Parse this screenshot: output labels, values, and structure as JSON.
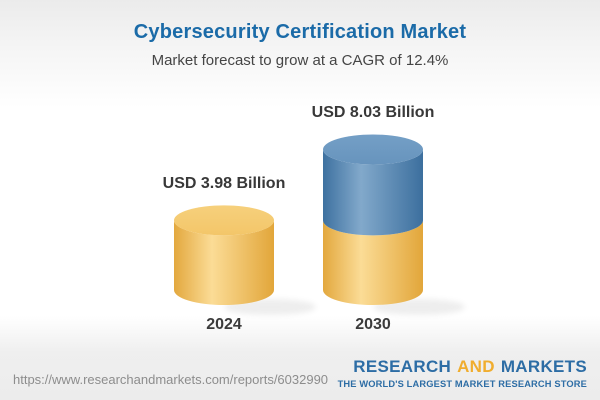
{
  "header": {
    "title": "Cybersecurity Certification Market",
    "subtitle": "Market forecast to grow at a CAGR of 12.4%"
  },
  "chart_data": {
    "type": "bar",
    "subtype": "3d-cylinder-stacked",
    "title": "Cybersecurity Certification Market",
    "subtitle": "Market forecast to grow at a CAGR of 12.4%",
    "unit": "USD Billion",
    "cagr_percent": 12.4,
    "categories": [
      "2024",
      "2030"
    ],
    "axes": {
      "visible": false
    },
    "grid": false,
    "legend": false,
    "bars": [
      {
        "year": "2024",
        "total": 3.98,
        "label": "USD 3.98 Billion",
        "segments": [
          {
            "name": "base-2024",
            "value": 3.98,
            "colorKey": "gold"
          }
        ]
      },
      {
        "year": "2030",
        "total": 8.03,
        "label": "USD 8.03 Billion",
        "segments": [
          {
            "name": "base-2024",
            "value": 3.98,
            "colorKey": "gold"
          },
          {
            "name": "growth-2024-2030",
            "value": 4.05,
            "colorKey": "blue"
          }
        ]
      }
    ]
  },
  "footer": {
    "url": "https://www.researchandmarkets.com/reports/6032990",
    "logo": {
      "word1": "RESEARCH",
      "word2": "AND",
      "word3": "MARKETS",
      "tagline": "THE WORLD'S LARGEST MARKET RESEARCH STORE"
    }
  },
  "colors": {
    "title_blue": "#1B6BA8",
    "text_dark": "#3B3B3B",
    "gold": "#F2C25E",
    "blue": "#4E80AE",
    "logo_blue": "#2D6DA5",
    "logo_gold": "#F0AD2E",
    "url_gray": "#8D8D8D"
  }
}
